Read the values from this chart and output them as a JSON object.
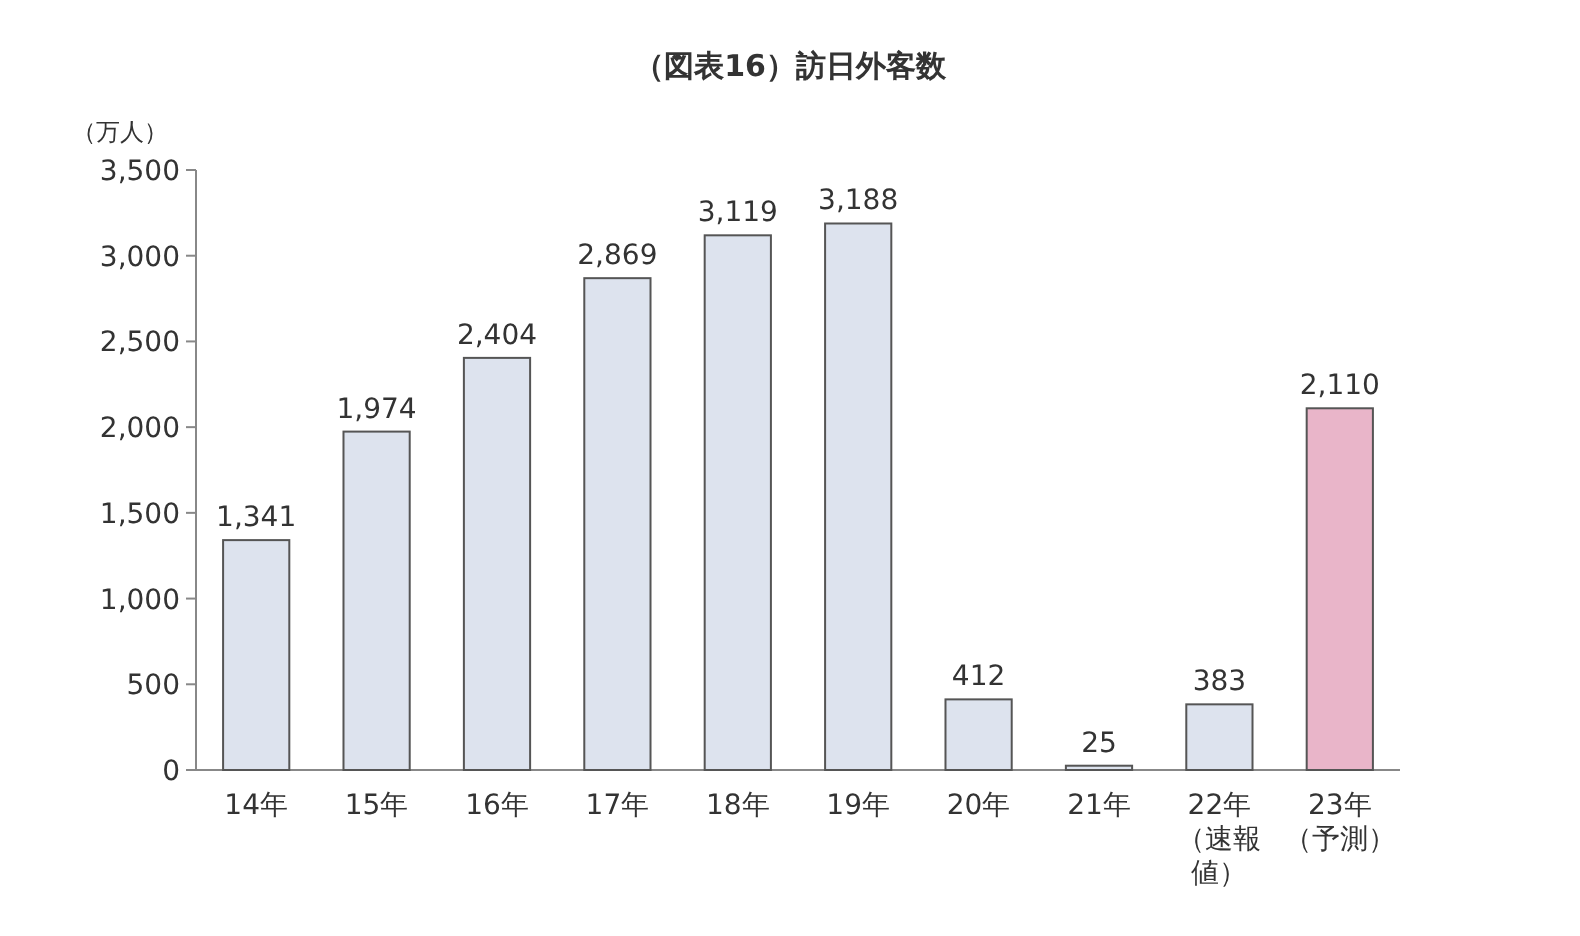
{
  "chart_data": {
    "type": "bar",
    "title": "（図表16）訪日外客数",
    "ylabel": "（万人）",
    "categories": [
      "14年",
      "15年",
      "16年",
      "17年",
      "18年",
      "19年",
      "20年",
      "21年",
      "22年（速報値）",
      "23年（予測）"
    ],
    "values": [
      1341,
      1974,
      2404,
      2869,
      3119,
      3188,
      412,
      25,
      383,
      2110
    ],
    "value_labels": [
      "1,341",
      "1,974",
      "2,404",
      "2,869",
      "3,119",
      "3,188",
      "412",
      "25",
      "383",
      "2,110"
    ],
    "colors": [
      "#dde3ee",
      "#dde3ee",
      "#dde3ee",
      "#dde3ee",
      "#dde3ee",
      "#dde3ee",
      "#dde3ee",
      "#dde3ee",
      "#dde3ee",
      "#e9b5c9"
    ],
    "ylim": [
      0,
      3500
    ],
    "yticks": [
      0,
      {
        "value": 500,
        "label": "500"
      },
      {
        "value": 1000,
        "label": "1,000"
      },
      {
        "value": 1500,
        "label": "1,500"
      },
      {
        "value": 2000,
        "label": "2,000"
      },
      {
        "value": 2500,
        "label": "2,500"
      },
      {
        "value": 3000,
        "label": "3,000"
      },
      {
        "value": 3500,
        "label": "3,500"
      }
    ],
    "grid": false
  }
}
